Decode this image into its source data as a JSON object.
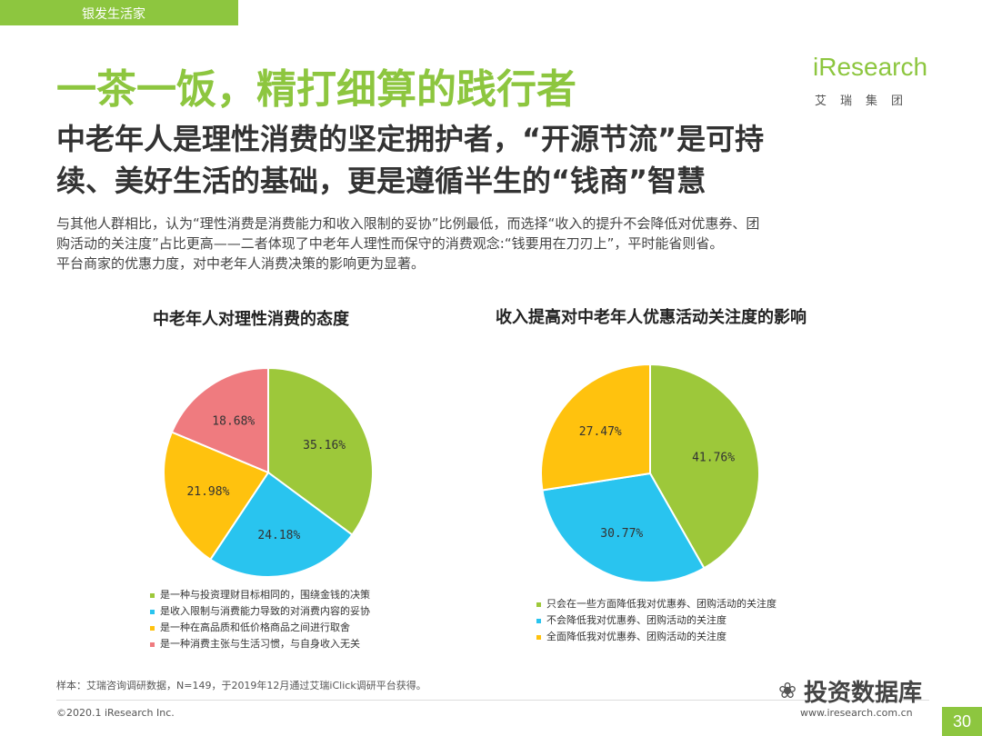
{
  "header": {
    "section_tag": "银发生活家"
  },
  "title": "一茶一饭，精打细算的践行者",
  "logo": {
    "brand": "iResearch",
    "sub": "艾瑞集团"
  },
  "subtitle": {
    "line1": "中老年人是理性消费的坚定拥护者，“开源节流”是可持",
    "line2": "续、美好生活的基础，更是遵循半生的“钱商”智慧"
  },
  "description": {
    "line1": "与其他人群相比，认为“理性消费是消费能力和收入限制的妥协”比例最低，而选择“收入的提升不会降低对优惠券、团",
    "line2": "购活动的关注度”占比更高——二者体现了中老年人理性而保守的消费观念:“钱要用在刀刃上”，平时能省则省。",
    "line3": "平台商家的优惠力度，对中老年人消费决策的影响更为显著。"
  },
  "chart_data": [
    {
      "type": "pie",
      "title": "中老年人对理性消费的态度",
      "categories": [
        "是一种与投资理财目标相同的，围绕金钱的决策",
        "是收入限制与消费能力导致的对消费内容的妥协",
        "是一种在高品质和低价格商品之间进行取舍",
        "是一种消费主张与生活习惯，与自身收入无关"
      ],
      "values": [
        35.16,
        24.18,
        21.98,
        18.68
      ],
      "labels": [
        "35.16%",
        "24.18%",
        "21.98%",
        "18.68%"
      ],
      "colors": [
        "#9dc83a",
        "#29c4ef",
        "#ffc20e",
        "#ef7b7f"
      ],
      "legend_position": "bottom"
    },
    {
      "type": "pie",
      "title": "收入提高对中老年人优惠活动关注度的影响",
      "categories": [
        "只会在一些方面降低我对优惠券、团购活动的关注度",
        "不会降低我对优惠券、团购活动的关注度",
        "全面降低我对优惠券、团购活动的关注度"
      ],
      "values": [
        41.76,
        30.77,
        27.47
      ],
      "labels": [
        "41.76%",
        "30.77%",
        "27.47%"
      ],
      "colors": [
        "#9dc83a",
        "#29c4ef",
        "#ffc20e"
      ],
      "legend_position": "bottom"
    }
  ],
  "footer": {
    "source": "样本：艾瑞咨询调研数据，N=149，于2019年12月通过艾瑞iClick调研平台获得。",
    "copyright": "©2020.1 iResearch Inc.",
    "website": "www.iresearch.com.cn",
    "page": "30"
  },
  "watermark": "投资数据库",
  "watermark_icon": "wechat-icon"
}
